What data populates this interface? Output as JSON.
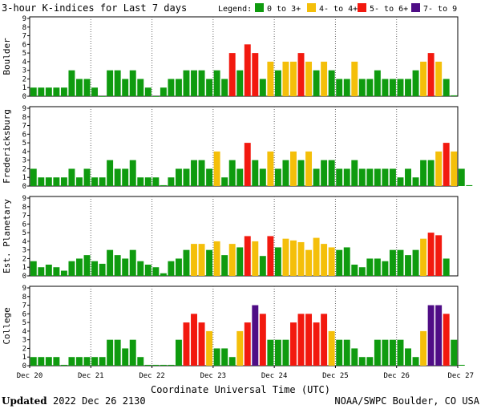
{
  "title": "3-hour K-indices for Last 7 days",
  "legend": {
    "label": "Legend:",
    "items": [
      {
        "label": "0 to 3+",
        "color": "#0f9b0f"
      },
      {
        "label": "4- to 4+",
        "color": "#f4bf0a"
      },
      {
        "label": "5- to 6+",
        "color": "#f2190f"
      },
      {
        "label": "7- to 9",
        "color": "#4f0d86"
      }
    ]
  },
  "x_axis": {
    "label": "Coordinate Universal Time (UTC)",
    "ticks": [
      "Dec 20",
      "Dec 21",
      "Dec 22",
      "Dec 23",
      "Dec 24",
      "Dec 25",
      "Dec 26",
      "Dec 27"
    ]
  },
  "footer": {
    "updated_label": "Updated",
    "updated_value": "2022 Dec 26 2130",
    "source": "NOAA/SWPC Boulder, CO USA"
  },
  "chart_data": [
    {
      "type": "bar",
      "station": "Boulder",
      "ylim": [
        0,
        9
      ],
      "yticks": [
        0,
        1,
        2,
        3,
        4,
        5,
        6,
        7,
        8,
        9
      ],
      "values": [
        1,
        1,
        1,
        1,
        1,
        3,
        2,
        2,
        1,
        0,
        3,
        3,
        2,
        3,
        2,
        1,
        0,
        1,
        2,
        2,
        3,
        3,
        3,
        2,
        3,
        2,
        5,
        3,
        6,
        5,
        2,
        4,
        3,
        4,
        4,
        5,
        4,
        3,
        4,
        3,
        2,
        2,
        4,
        2,
        2,
        3,
        2,
        2,
        2,
        2,
        3,
        4,
        5,
        4,
        2,
        0.1
      ]
    },
    {
      "type": "bar",
      "station": "Fredericksburg",
      "ylim": [
        0,
        9
      ],
      "yticks": [
        0,
        1,
        2,
        3,
        4,
        5,
        6,
        7,
        8,
        9
      ],
      "values": [
        2,
        1,
        1,
        1,
        1,
        2,
        1,
        2,
        1,
        1,
        3,
        2,
        2,
        3,
        1,
        1,
        1,
        0.1,
        1,
        2,
        2,
        3,
        3,
        2,
        4,
        1,
        3,
        2,
        5,
        3,
        2,
        4,
        2,
        3,
        4,
        3,
        4,
        2,
        3,
        3,
        2,
        2,
        3,
        2,
        2,
        2,
        2,
        2,
        1,
        2,
        1,
        3,
        3,
        4,
        5,
        4,
        2,
        0.1
      ]
    },
    {
      "type": "bar",
      "station": "Est. Planetary",
      "ylim": [
        0,
        9
      ],
      "yticks": [
        0,
        1,
        2,
        3,
        4,
        5,
        6,
        7,
        8,
        9
      ],
      "values": [
        1.7,
        1,
        1.3,
        1,
        0.6,
        1.7,
        2,
        2.4,
        1.7,
        1.4,
        3,
        2.4,
        2,
        3,
        1.7,
        1.3,
        1,
        0.3,
        1.7,
        2,
        3,
        3.7,
        3.7,
        3,
        4,
        2.4,
        3.7,
        3.3,
        4.6,
        4,
        2.3,
        4.6,
        3.3,
        4.3,
        4.1,
        3.9,
        3,
        4.4,
        3.7,
        3.3,
        3,
        3.3,
        1.3,
        1,
        2,
        2,
        1.7,
        3,
        3,
        2.4,
        3,
        4.3,
        5,
        4.7,
        2
      ],
      "colors": [
        "g",
        "g",
        "g",
        "g",
        "g",
        "g",
        "g",
        "g",
        "g",
        "g",
        "g",
        "g",
        "g",
        "g",
        "g",
        "g",
        "g",
        "g",
        "g",
        "g",
        "g",
        "y",
        "y",
        "g",
        "y",
        "g",
        "y",
        "g",
        "r",
        "y",
        "g",
        "r",
        "g",
        "y",
        "y",
        "y",
        "y",
        "y",
        "y",
        "y",
        "g",
        "g",
        "g",
        "g",
        "g",
        "g",
        "g",
        "g",
        "g",
        "g",
        "g",
        "y",
        "r",
        "r",
        "g"
      ]
    },
    {
      "type": "bar",
      "station": "College",
      "ylim": [
        0,
        9
      ],
      "yticks": [
        0,
        1,
        2,
        3,
        4,
        5,
        6,
        7,
        8,
        9
      ],
      "values": [
        1,
        1,
        1,
        1,
        0.1,
        1,
        1,
        1,
        1,
        1,
        3,
        3,
        2,
        3,
        1,
        0.1,
        0.1,
        0.1,
        0.1,
        3,
        5,
        6,
        5,
        4,
        2,
        2,
        1,
        4,
        5,
        7,
        6,
        3,
        3,
        3,
        5,
        6,
        6,
        5,
        6,
        4,
        3,
        3,
        2,
        1,
        1,
        3,
        3,
        3,
        3,
        2,
        1,
        4,
        7,
        7,
        6,
        3,
        0.1
      ]
    }
  ]
}
